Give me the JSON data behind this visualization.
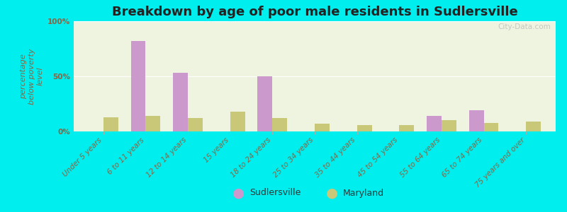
{
  "title": "Breakdown by age of poor male residents in Sudlersville",
  "ylabel": "percentage\nbelow poverty\nlevel",
  "categories": [
    "Under 5 years",
    "6 to 11 years",
    "12 to 14 years",
    "15 years",
    "18 to 24 years",
    "25 to 34 years",
    "35 to 44 years",
    "45 to 54 years",
    "55 to 64 years",
    "65 to 74 years",
    "75 years and over"
  ],
  "sudlersville_values": [
    0,
    82,
    53,
    0,
    50,
    0,
    0,
    0,
    14,
    19,
    0
  ],
  "maryland_values": [
    13,
    14,
    12,
    18,
    12,
    7,
    6,
    6,
    10,
    8,
    9
  ],
  "sudlersville_color": "#cc99cc",
  "maryland_color": "#c8c878",
  "background_color": "#00eeee",
  "plot_bg_color": "#eef4e0",
  "title_color": "#222222",
  "ylabel_color": "#886644",
  "tick_label_color": "#886644",
  "legend_text_color": "#333333",
  "ylim": [
    0,
    100
  ],
  "yticks": [
    0,
    50,
    100
  ],
  "ytick_labels": [
    "0%",
    "50%",
    "100%"
  ],
  "bar_width": 0.35,
  "title_fontsize": 13,
  "axis_label_fontsize": 8,
  "tick_label_fontsize": 7.5,
  "watermark": "City-Data.com"
}
